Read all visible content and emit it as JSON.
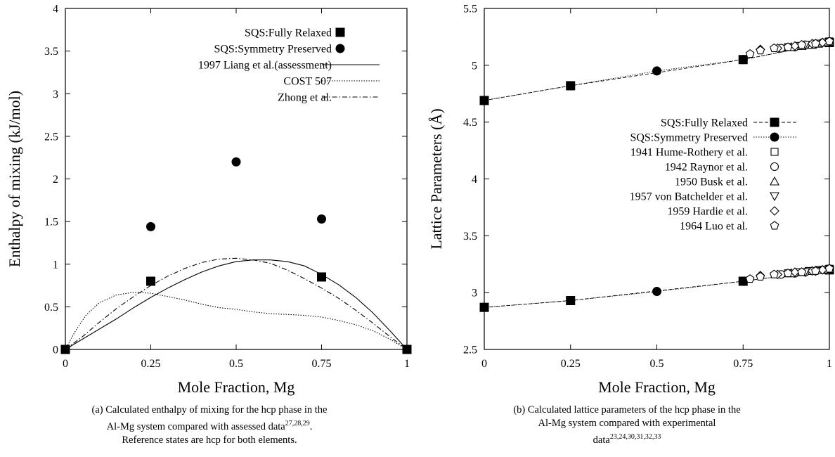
{
  "charts": [
    {
      "type": "scatter",
      "xlabel": "Mole Fraction, Mg",
      "ylabel": "Enthalpy of mixing (kJ/mol)",
      "xlim": [
        0,
        1
      ],
      "ylim": [
        0,
        4
      ],
      "xticks": [
        {
          "v": 0,
          "label": "0"
        },
        {
          "v": 0.25,
          "label": "0.25"
        },
        {
          "v": 0.5,
          "label": "0.5"
        },
        {
          "v": 0.75,
          "label": "0.75"
        },
        {
          "v": 1,
          "label": "1"
        }
      ],
      "yticks": [
        {
          "v": 0,
          "label": "0"
        },
        {
          "v": 0.5,
          "label": "0.5"
        },
        {
          "v": 1,
          "label": "1"
        },
        {
          "v": 1.5,
          "label": "1.5"
        },
        {
          "v": 2,
          "label": "2"
        },
        {
          "v": 2.5,
          "label": "2.5"
        },
        {
          "v": 3,
          "label": "3"
        },
        {
          "v": 3.5,
          "label": "3.5"
        },
        {
          "v": 4,
          "label": "4"
        }
      ],
      "series": [
        {
          "name": "SQS:Fully Relaxed",
          "marker": "square-filled",
          "line": "none",
          "x": [
            0,
            0.25,
            0.75,
            1
          ],
          "y": [
            0,
            0.8,
            0.85,
            0
          ]
        },
        {
          "name": "SQS:Symmetry Preserved",
          "marker": "circle-filled",
          "line": "none",
          "x": [
            0.25,
            0.5,
            0.75
          ],
          "y": [
            1.44,
            2.2,
            1.53
          ]
        },
        {
          "name": "1997 Liang et al.(assessment)",
          "marker": "none",
          "line": "solid",
          "x": [
            0,
            0.05,
            0.1,
            0.15,
            0.2,
            0.25,
            0.3,
            0.35,
            0.4,
            0.45,
            0.5,
            0.55,
            0.6,
            0.65,
            0.7,
            0.75,
            0.8,
            0.85,
            0.9,
            0.95,
            1
          ],
          "y": [
            0,
            0.12,
            0.24,
            0.36,
            0.49,
            0.61,
            0.72,
            0.82,
            0.91,
            0.98,
            1.03,
            1.05,
            1.05,
            1.03,
            0.98,
            0.88,
            0.76,
            0.61,
            0.43,
            0.22,
            0
          ]
        },
        {
          "name": "COST 507",
          "marker": "none",
          "line": "dotted",
          "x": [
            0,
            0.03,
            0.06,
            0.1,
            0.15,
            0.2,
            0.25,
            0.3,
            0.35,
            0.4,
            0.45,
            0.5,
            0.55,
            0.6,
            0.65,
            0.7,
            0.75,
            0.8,
            0.85,
            0.9,
            0.95,
            1
          ],
          "y": [
            0,
            0.22,
            0.4,
            0.55,
            0.64,
            0.67,
            0.66,
            0.62,
            0.58,
            0.53,
            0.49,
            0.47,
            0.44,
            0.42,
            0.41,
            0.4,
            0.38,
            0.34,
            0.29,
            0.22,
            0.12,
            0
          ]
        },
        {
          "name": "Zhong et al.",
          "marker": "none",
          "line": "dashdot",
          "x": [
            0,
            0.05,
            0.1,
            0.15,
            0.2,
            0.25,
            0.3,
            0.35,
            0.4,
            0.45,
            0.5,
            0.55,
            0.6,
            0.65,
            0.7,
            0.75,
            0.8,
            0.85,
            0.9,
            0.95,
            1
          ],
          "y": [
            0,
            0.15,
            0.32,
            0.48,
            0.62,
            0.75,
            0.86,
            0.95,
            1.02,
            1.06,
            1.07,
            1.05,
            1.01,
            0.93,
            0.83,
            0.72,
            0.6,
            0.46,
            0.31,
            0.15,
            0
          ]
        }
      ],
      "caption": {
        "prefix": "(a) Calculated enthalpy of mixing for the hcp phase in the",
        "line2": "Al-Mg system compared with assessed data",
        "refs": "27,28,29",
        "line2_end": ".",
        "line3": "Reference states are hcp for both elements."
      }
    },
    {
      "type": "scatter",
      "xlabel": "Mole Fraction, Mg",
      "ylabel": "Lattice Parameters (Å)",
      "xlim": [
        0,
        1
      ],
      "ylim": [
        2.5,
        5.5
      ],
      "xticks": [
        {
          "v": 0,
          "label": "0"
        },
        {
          "v": 0.25,
          "label": "0.25"
        },
        {
          "v": 0.5,
          "label": "0.5"
        },
        {
          "v": 0.75,
          "label": "0.75"
        },
        {
          "v": 1,
          "label": "1"
        }
      ],
      "yticks": [
        {
          "v": 2.5,
          "label": "2.5"
        },
        {
          "v": 3,
          "label": "3"
        },
        {
          "v": 3.5,
          "label": "3.5"
        },
        {
          "v": 4,
          "label": "4"
        },
        {
          "v": 4.5,
          "label": "4.5"
        },
        {
          "v": 5,
          "label": "5"
        },
        {
          "v": 5.5,
          "label": "5.5"
        }
      ],
      "series": [
        {
          "name": "SQS:Fully Relaxed",
          "marker": "square-filled",
          "line": "dashed",
          "groups": [
            {
              "x": [
                0,
                0.25,
                0.75,
                1
              ],
              "y": [
                4.69,
                4.82,
                5.05,
                5.2
              ]
            },
            {
              "x": [
                0,
                0.25,
                0.75,
                1
              ],
              "y": [
                2.87,
                2.93,
                3.1,
                3.2
              ]
            }
          ]
        },
        {
          "name": "SQS:Symmetry Preserved",
          "marker": "circle-filled",
          "line": "dotted",
          "groups": [
            {
              "x": [
                0,
                0.25,
                0.5,
                0.75,
                1
              ],
              "y": [
                4.69,
                4.82,
                4.95,
                5.05,
                5.2
              ]
            },
            {
              "x": [
                0,
                0.25,
                0.5,
                0.75,
                1
              ],
              "y": [
                2.87,
                2.93,
                3.01,
                3.1,
                3.2
              ]
            }
          ]
        },
        {
          "name": "1941 Hume-Rothery et al.",
          "marker": "square-open",
          "line": "none",
          "groups": [
            {
              "x": [
                0.88,
                0.91,
                0.94,
                0.97,
                0.99,
                1.0
              ],
              "y": [
                5.16,
                5.17,
                5.18,
                5.19,
                5.2,
                5.21
              ]
            },
            {
              "x": [
                0.88,
                0.91,
                0.94,
                0.97,
                0.99,
                1.0
              ],
              "y": [
                3.17,
                3.18,
                3.19,
                3.2,
                3.2,
                3.21
              ]
            }
          ]
        },
        {
          "name": "1942 Raynor et al.",
          "marker": "circle-open",
          "line": "none",
          "groups": [
            {
              "x": [
                0.86,
                0.9,
                0.93,
                0.96,
                0.98,
                1.0
              ],
              "y": [
                5.15,
                5.16,
                5.18,
                5.19,
                5.2,
                5.21
              ]
            },
            {
              "x": [
                0.86,
                0.9,
                0.93,
                0.96,
                0.98,
                1.0
              ],
              "y": [
                3.16,
                3.17,
                3.18,
                3.19,
                3.2,
                3.21
              ]
            }
          ]
        },
        {
          "name": "1950 Busk et al.",
          "marker": "triangle-up-open",
          "line": "none",
          "groups": [
            {
              "x": [
                0.89,
                0.92,
                0.95,
                0.98,
                1.0
              ],
              "y": [
                5.16,
                5.17,
                5.18,
                5.2,
                5.21
              ]
            },
            {
              "x": [
                0.89,
                0.92,
                0.95,
                0.98,
                1.0
              ],
              "y": [
                3.17,
                3.18,
                3.19,
                3.2,
                3.21
              ]
            }
          ]
        },
        {
          "name": "1957 von Batchelder et al.",
          "marker": "triangle-down-open",
          "line": "none",
          "groups": [
            {
              "x": [
                0.93,
                0.96,
                0.99
              ],
              "y": [
                5.18,
                5.19,
                5.2
              ]
            },
            {
              "x": [
                0.93,
                0.96,
                0.99
              ],
              "y": [
                3.18,
                3.19,
                3.2
              ]
            }
          ]
        },
        {
          "name": "1959 Hardie et al.",
          "marker": "diamond-open",
          "line": "none",
          "groups": [
            {
              "x": [
                0.8,
                0.85,
                0.9,
                0.95,
                0.98
              ],
              "y": [
                5.14,
                5.15,
                5.17,
                5.19,
                5.2
              ]
            },
            {
              "x": [
                0.8,
                0.85,
                0.9,
                0.95,
                0.98
              ],
              "y": [
                3.15,
                3.16,
                3.18,
                3.19,
                3.2
              ]
            }
          ]
        },
        {
          "name": "1964 Luo et al.",
          "marker": "pentagon-open",
          "line": "none",
          "groups": [
            {
              "x": [
                0.77,
                0.8,
                0.84,
                0.88,
                0.92,
                0.96,
                1.0
              ],
              "y": [
                5.1,
                5.13,
                5.15,
                5.16,
                5.18,
                5.19,
                5.21
              ]
            },
            {
              "x": [
                0.77,
                0.8,
                0.84,
                0.88,
                0.92,
                0.96,
                1.0
              ],
              "y": [
                3.12,
                3.14,
                3.16,
                3.17,
                3.18,
                3.19,
                3.21
              ]
            }
          ]
        }
      ],
      "caption": {
        "prefix": "(b) Calculated lattice parameters of the hcp phase in the",
        "line2": "Al-Mg system compared with experimental",
        "line3": "data",
        "refs": "23,24,30,31,32,33"
      }
    }
  ]
}
